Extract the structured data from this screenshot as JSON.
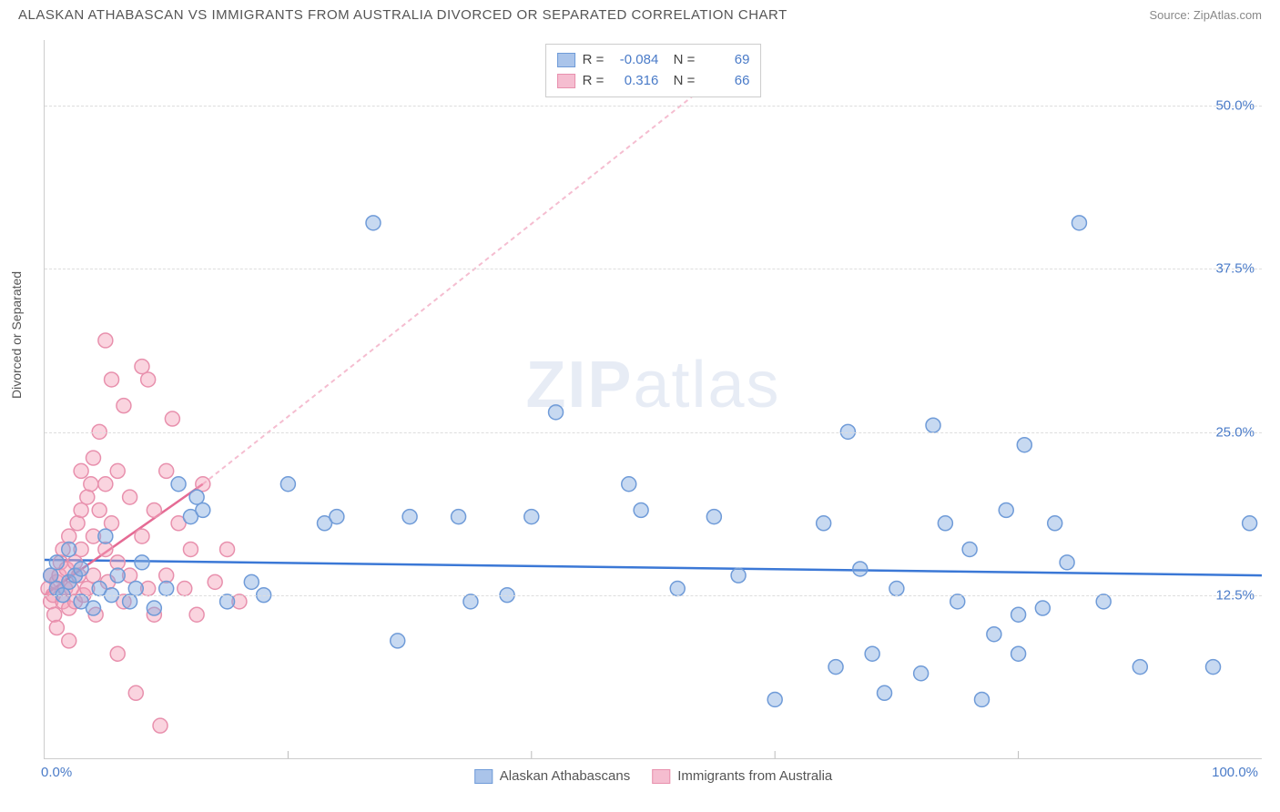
{
  "header": {
    "title": "ALASKAN ATHABASCAN VS IMMIGRANTS FROM AUSTRALIA DIVORCED OR SEPARATED CORRELATION CHART",
    "source": "Source: ZipAtlas.com"
  },
  "chart": {
    "type": "scatter",
    "ylabel": "Divorced or Separated",
    "watermark": {
      "bold": "ZIP",
      "light": "atlas"
    },
    "xlim": [
      0,
      100
    ],
    "ylim": [
      0,
      55
    ],
    "xtick_min_label": "0.0%",
    "xtick_max_label": "100.0%",
    "ytick_labels": [
      "12.5%",
      "25.0%",
      "37.5%",
      "50.0%"
    ],
    "ytick_values": [
      12.5,
      25.0,
      37.5,
      50.0
    ],
    "xtick_major_values": [
      20,
      40,
      60,
      80
    ],
    "grid_color": "#dddddd",
    "background_color": "#ffffff",
    "marker_radius": 8,
    "marker_stroke_width": 1.5,
    "trend_line_width": 2.5,
    "series": [
      {
        "key": "athabascan",
        "label": "Alaskan Athabascans",
        "color_fill": "rgba(130,170,225,0.45)",
        "color_stroke": "#6f9bd8",
        "color_swatch_fill": "#aac4ea",
        "color_swatch_stroke": "#6f9bd8",
        "R": "-0.084",
        "N": "69",
        "trend": {
          "x1": 0,
          "y1": 15.2,
          "x2": 100,
          "y2": 14.0,
          "dash": "none",
          "color": "#3b78d6"
        },
        "points": [
          [
            0.5,
            14
          ],
          [
            1,
            13
          ],
          [
            1,
            15
          ],
          [
            1.5,
            12.5
          ],
          [
            2,
            16
          ],
          [
            2,
            13.5
          ],
          [
            2.5,
            14
          ],
          [
            3,
            14.5
          ],
          [
            3,
            12
          ],
          [
            4,
            11.5
          ],
          [
            4.5,
            13
          ],
          [
            5,
            17
          ],
          [
            5.5,
            12.5
          ],
          [
            6,
            14
          ],
          [
            7,
            12
          ],
          [
            7.5,
            13
          ],
          [
            8,
            15
          ],
          [
            9,
            11.5
          ],
          [
            10,
            13
          ],
          [
            11,
            21
          ],
          [
            12,
            18.5
          ],
          [
            12.5,
            20
          ],
          [
            13,
            19
          ],
          [
            15,
            12
          ],
          [
            17,
            13.5
          ],
          [
            18,
            12.5
          ],
          [
            20,
            21
          ],
          [
            23,
            18
          ],
          [
            24,
            18.5
          ],
          [
            27,
            41
          ],
          [
            29,
            9
          ],
          [
            30,
            18.5
          ],
          [
            34,
            18.5
          ],
          [
            35,
            12
          ],
          [
            38,
            12.5
          ],
          [
            40,
            18.5
          ],
          [
            42,
            26.5
          ],
          [
            48,
            21
          ],
          [
            49,
            19
          ],
          [
            52,
            13
          ],
          [
            55,
            18.5
          ],
          [
            57,
            14
          ],
          [
            60,
            4.5
          ],
          [
            64,
            18
          ],
          [
            65,
            7
          ],
          [
            66,
            25
          ],
          [
            67,
            14.5
          ],
          [
            68,
            8
          ],
          [
            69,
            5
          ],
          [
            70,
            13
          ],
          [
            72,
            6.5
          ],
          [
            73,
            25.5
          ],
          [
            74,
            18
          ],
          [
            75,
            12
          ],
          [
            76,
            16
          ],
          [
            77,
            4.5
          ],
          [
            78,
            9.5
          ],
          [
            79,
            19
          ],
          [
            80,
            11
          ],
          [
            80,
            8
          ],
          [
            80.5,
            24
          ],
          [
            82,
            11.5
          ],
          [
            83,
            18
          ],
          [
            84,
            15
          ],
          [
            85,
            41
          ],
          [
            87,
            12
          ],
          [
            90,
            7
          ],
          [
            96,
            7
          ],
          [
            99,
            18
          ]
        ]
      },
      {
        "key": "australia",
        "label": "Immigrants from Australia",
        "color_fill": "rgba(245,160,185,0.45)",
        "color_stroke": "#e890ad",
        "color_swatch_fill": "#f5bdd0",
        "color_swatch_stroke": "#e890ad",
        "R": "0.316",
        "N": "66",
        "trend": {
          "x1": 0,
          "y1": 12.5,
          "x2": 13,
          "y2": 21,
          "dash": "none",
          "color": "#e56b94"
        },
        "trend_ext": {
          "x1": 13,
          "y1": 21,
          "x2": 55,
          "y2": 52,
          "dash": "5,4",
          "color": "#f5bdd0"
        },
        "points": [
          [
            0.3,
            13
          ],
          [
            0.5,
            12
          ],
          [
            0.5,
            14
          ],
          [
            0.7,
            12.5
          ],
          [
            0.8,
            11
          ],
          [
            1,
            13.5
          ],
          [
            1,
            10
          ],
          [
            1.2,
            14
          ],
          [
            1.3,
            15
          ],
          [
            1.5,
            12
          ],
          [
            1.5,
            16
          ],
          [
            1.7,
            13
          ],
          [
            1.8,
            14.5
          ],
          [
            2,
            11.5
          ],
          [
            2,
            17
          ],
          [
            2,
            9
          ],
          [
            2.2,
            13
          ],
          [
            2.5,
            15
          ],
          [
            2.5,
            12
          ],
          [
            2.7,
            18
          ],
          [
            2.8,
            14
          ],
          [
            3,
            16
          ],
          [
            3,
            19
          ],
          [
            3,
            22
          ],
          [
            3.2,
            12.5
          ],
          [
            3.5,
            20
          ],
          [
            3.5,
            13
          ],
          [
            3.8,
            21
          ],
          [
            4,
            17
          ],
          [
            4,
            14
          ],
          [
            4,
            23
          ],
          [
            4.2,
            11
          ],
          [
            4.5,
            19
          ],
          [
            4.5,
            25
          ],
          [
            5,
            32
          ],
          [
            5,
            16
          ],
          [
            5,
            21
          ],
          [
            5.2,
            13.5
          ],
          [
            5.5,
            18
          ],
          [
            5.5,
            29
          ],
          [
            6,
            15
          ],
          [
            6,
            22
          ],
          [
            6,
            8
          ],
          [
            6.5,
            27
          ],
          [
            6.5,
            12
          ],
          [
            7,
            20
          ],
          [
            7,
            14
          ],
          [
            7.5,
            5
          ],
          [
            8,
            30
          ],
          [
            8,
            17
          ],
          [
            8.5,
            13
          ],
          [
            8.5,
            29
          ],
          [
            9,
            19
          ],
          [
            9,
            11
          ],
          [
            9.5,
            2.5
          ],
          [
            10,
            22
          ],
          [
            10,
            14
          ],
          [
            10.5,
            26
          ],
          [
            11,
            18
          ],
          [
            11.5,
            13
          ],
          [
            12,
            16
          ],
          [
            12.5,
            11
          ],
          [
            13,
            21
          ],
          [
            14,
            13.5
          ],
          [
            15,
            16
          ],
          [
            16,
            12
          ]
        ]
      }
    ]
  }
}
